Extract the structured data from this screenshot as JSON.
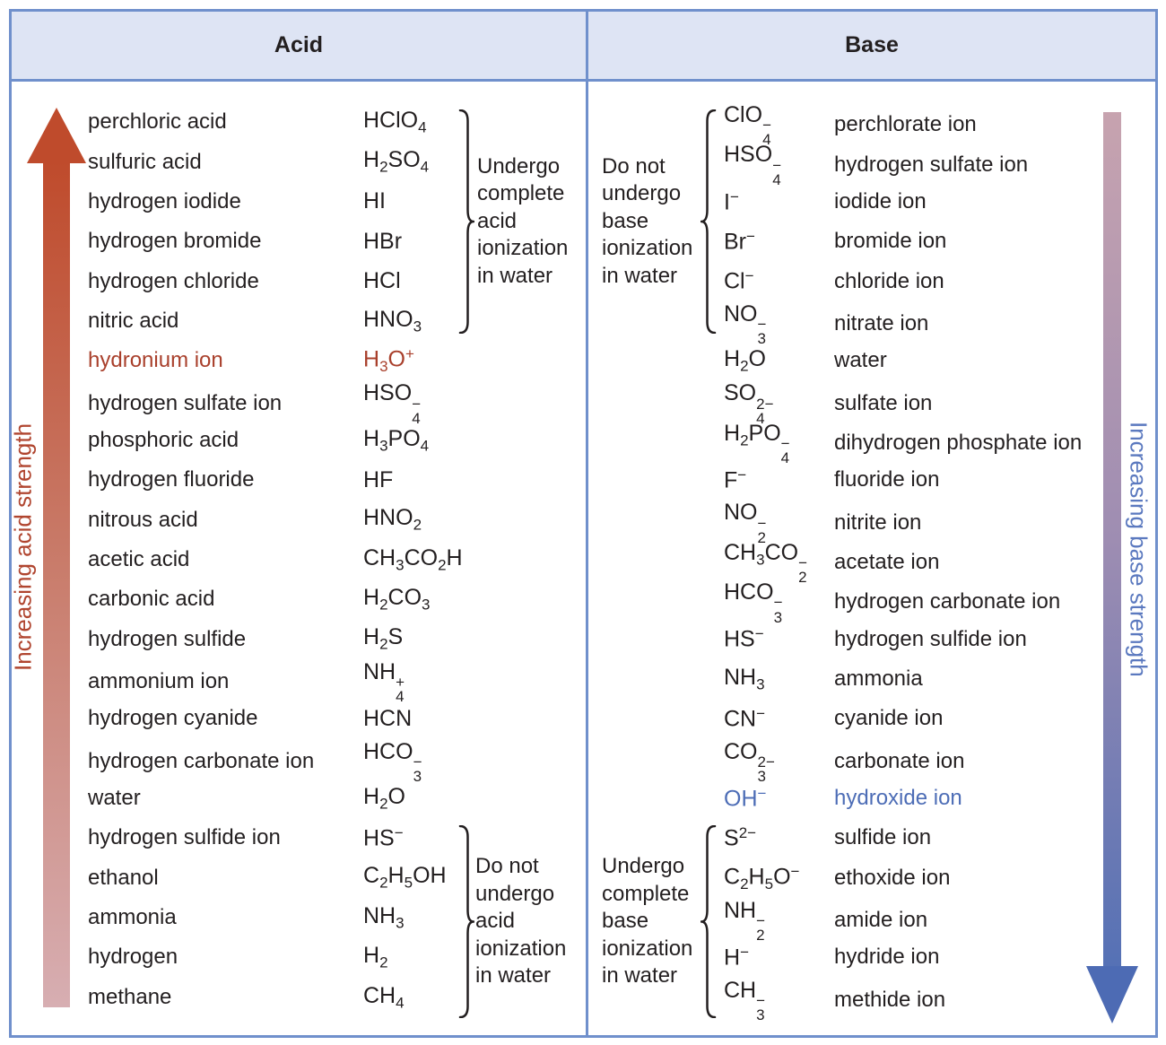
{
  "table": {
    "headers": {
      "acid": "Acid",
      "base": "Base"
    },
    "acid_rows": [
      {
        "name": "perchloric acid",
        "formula": "HClO_{4}"
      },
      {
        "name": "sulfuric acid",
        "formula": "H_{2}SO_{4}"
      },
      {
        "name": "hydrogen iodide",
        "formula": "HI"
      },
      {
        "name": "hydrogen bromide",
        "formula": "HBr"
      },
      {
        "name": "hydrogen chloride",
        "formula": "HCl"
      },
      {
        "name": "nitric acid",
        "formula": "HNO_{3}"
      },
      {
        "name": "hydronium ion",
        "formula": "H_{3}O^{+}",
        "accent": "red"
      },
      {
        "name": "hydrogen sulfate ion",
        "formula": "HSO_{4}^{−}"
      },
      {
        "name": "phosphoric acid",
        "formula": "H_{3}PO_{4}"
      },
      {
        "name": "hydrogen fluoride",
        "formula": "HF"
      },
      {
        "name": "nitrous acid",
        "formula": "HNO_{2}"
      },
      {
        "name": "acetic acid",
        "formula": "CH_{3}CO_{2}H"
      },
      {
        "name": "carbonic acid",
        "formula": "H_{2}CO_{3}"
      },
      {
        "name": "hydrogen sulfide",
        "formula": "H_{2}S"
      },
      {
        "name": "ammonium ion",
        "formula": "NH_{4}^{+}"
      },
      {
        "name": "hydrogen cyanide",
        "formula": "HCN"
      },
      {
        "name": "hydrogen carbonate ion",
        "formula": "HCO_{3}^{−}"
      },
      {
        "name": "water",
        "formula": "H_{2}O",
        "highlight": true
      },
      {
        "name": "hydrogen sulfide ion",
        "formula": "HS^{−}"
      },
      {
        "name": "ethanol",
        "formula": "C_{2}H_{5}OH"
      },
      {
        "name": "ammonia",
        "formula": "NH_{3}"
      },
      {
        "name": "hydrogen",
        "formula": "H_{2}"
      },
      {
        "name": "methane",
        "formula": "CH_{4}"
      }
    ],
    "base_rows": [
      {
        "formula": "ClO_{4}^{−}",
        "name": "perchlorate ion"
      },
      {
        "formula": "HSO_{4}^{−}",
        "name": "hydrogen sulfate ion"
      },
      {
        "formula": "I^{−}",
        "name": "iodide ion"
      },
      {
        "formula": "Br^{−}",
        "name": "bromide ion"
      },
      {
        "formula": "Cl^{−}",
        "name": "chloride ion"
      },
      {
        "formula": "NO_{3}^{−}",
        "name": "nitrate ion"
      },
      {
        "formula": "H_{2}O",
        "name": "water",
        "highlight": true
      },
      {
        "formula": "SO_{4}^{2−}",
        "name": "sulfate ion"
      },
      {
        "formula": "H_{2}PO_{4}^{−}",
        "name": "dihydrogen phosphate ion"
      },
      {
        "formula": "F^{−}",
        "name": "fluoride ion"
      },
      {
        "formula": "NO_{2}^{−}",
        "name": "nitrite ion"
      },
      {
        "formula": "CH_{3}CO_{2}^{−}",
        "name": "acetate ion"
      },
      {
        "formula": "HCO_{3}^{−}",
        "name": "hydrogen carbonate ion"
      },
      {
        "formula": "HS^{−}",
        "name": "hydrogen sulfide ion"
      },
      {
        "formula": "NH_{3}",
        "name": "ammonia"
      },
      {
        "formula": "CN^{−}",
        "name": "cyanide ion"
      },
      {
        "formula": "CO_{3}^{2−}",
        "name": "carbonate ion"
      },
      {
        "formula": "OH^{−}",
        "name": "hydroxide ion",
        "accent": "blue"
      },
      {
        "formula": "S^{2−}",
        "name": "sulfide ion"
      },
      {
        "formula": "C_{2}H_{5}O^{−}",
        "name": "ethoxide ion"
      },
      {
        "formula": "NH_{2}^{−}",
        "name": "amide ion"
      },
      {
        "formula": "H^{−}",
        "name": "hydride ion"
      },
      {
        "formula": "CH_{3}^{−}",
        "name": "methide ion"
      }
    ]
  },
  "annotations": {
    "acid_top": {
      "lines": [
        "Undergo",
        "complete",
        "acid",
        "ionization",
        "in water"
      ]
    },
    "acid_bottom": {
      "lines": [
        "Do not",
        "undergo",
        "acid",
        "ionization",
        "in water"
      ]
    },
    "base_top": {
      "lines": [
        "Do not",
        "undergo",
        "base",
        "ionization",
        "in water"
      ]
    },
    "base_bottom": {
      "lines": [
        "Undergo",
        "complete",
        "base",
        "ionization",
        "in water"
      ]
    }
  },
  "arrows": {
    "acid": {
      "label": "Increasing acid strength",
      "direction": "up"
    },
    "base": {
      "label": "Increasing base strength",
      "direction": "down"
    }
  },
  "colors": {
    "text": "#231f20",
    "border": "#7090cc",
    "header_bg": "#dee4f4",
    "cream": "#f3e8ca",
    "accent_red": "#a9402c",
    "accent_blue": "#4d6db6",
    "label_red": "#b0452f",
    "label_blue": "#5b79bf",
    "arrow_red_top": "#bf4b2c",
    "arrow_red_mid": "#c97c6b",
    "arrow_red_bottom": "#d7aeb2",
    "arrow_blue_top": "#c7a3af",
    "arrow_blue_mid": "#9e8db2",
    "arrow_blue_bottom": "#5571b5",
    "arrow_blue_head": "#4d6bb4"
  }
}
